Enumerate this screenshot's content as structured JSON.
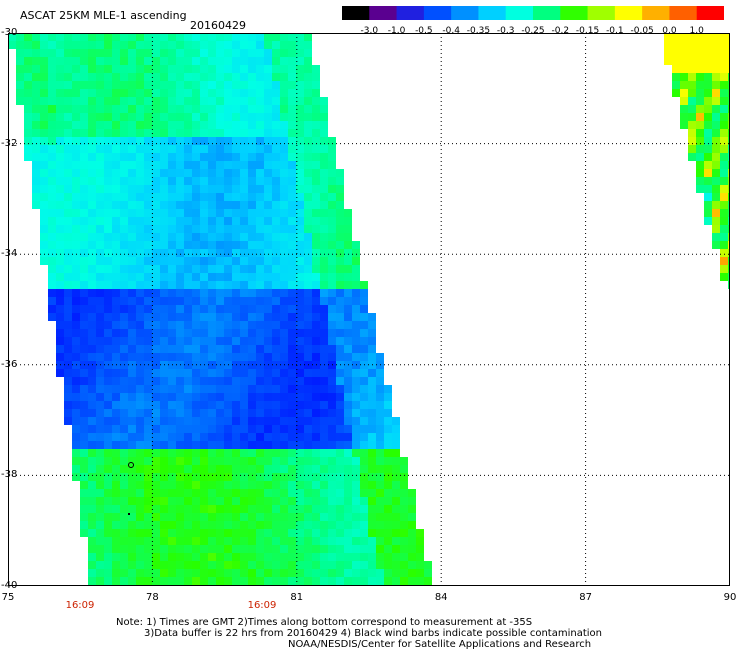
{
  "header": {
    "title": "ASCAT 25KM MLE-1 ascending",
    "date": "20160429"
  },
  "colorbar": {
    "labels": [
      "-3.0",
      "-1.0",
      "-0.5",
      "-0.4",
      "-0.35",
      "-0.3",
      "-0.25",
      "-0.2",
      "-0.15",
      "-0.1",
      "-0.05",
      "0.0",
      "1.0"
    ],
    "colors": [
      "#000000",
      "#5a0090",
      "#2020e0",
      "#0050ff",
      "#0090ff",
      "#00d0ff",
      "#00ffe0",
      "#00ff80",
      "#30ff00",
      "#a0ff00",
      "#ffff00",
      "#ffb000",
      "#ff6000",
      "#ff0000"
    ]
  },
  "axes": {
    "y_labels": [
      "-30",
      "-32",
      "-34",
      "-36",
      "-38",
      "-40"
    ],
    "x_labels": [
      "75",
      "78",
      "81",
      "84",
      "87",
      "90"
    ],
    "time_labels": [
      "16:09",
      "16:09"
    ]
  },
  "notes": {
    "line1": "Note: 1) Times are GMT 2)Times along bottom correspond to measurement at -35S",
    "line2": "3)Data buffer is 22 hrs from 20160429 4) Black wind barbs indicate possible contamination",
    "line3": "NOAA/NESDIS/Center for Satellite Applications and Research"
  }
}
